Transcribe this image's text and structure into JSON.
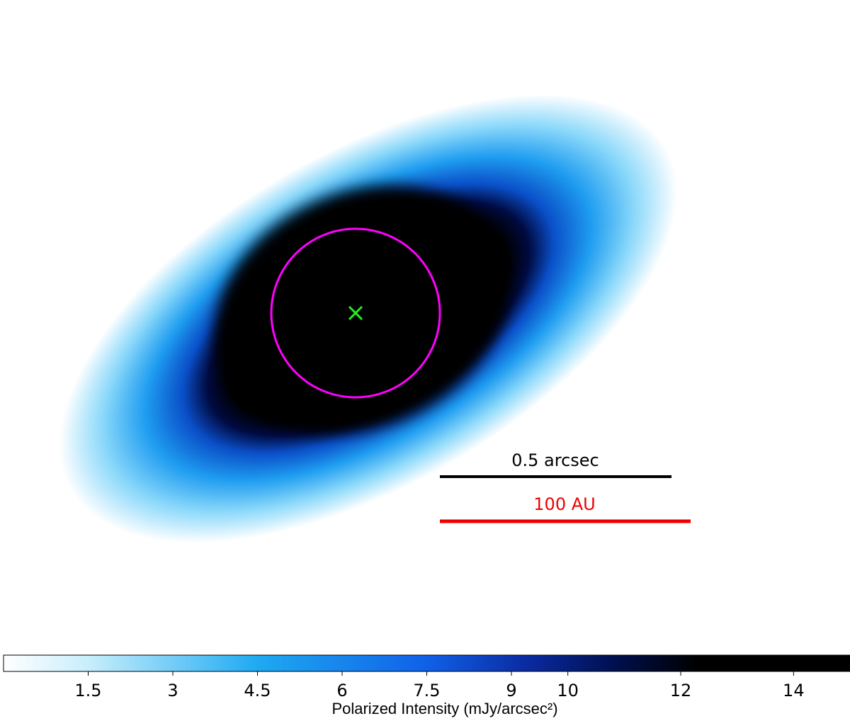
{
  "chart_data": {
    "type": "image",
    "annotations": [
      "0.5 arcsec",
      "100 AU"
    ],
    "colorbar": {
      "label": "Polarized Intensity (mJy/arcsec²)",
      "lim": [
        0,
        15
      ],
      "ticks": [
        1.5,
        3,
        4.5,
        6,
        7.5,
        9,
        10,
        12,
        14
      ]
    }
  }
}
